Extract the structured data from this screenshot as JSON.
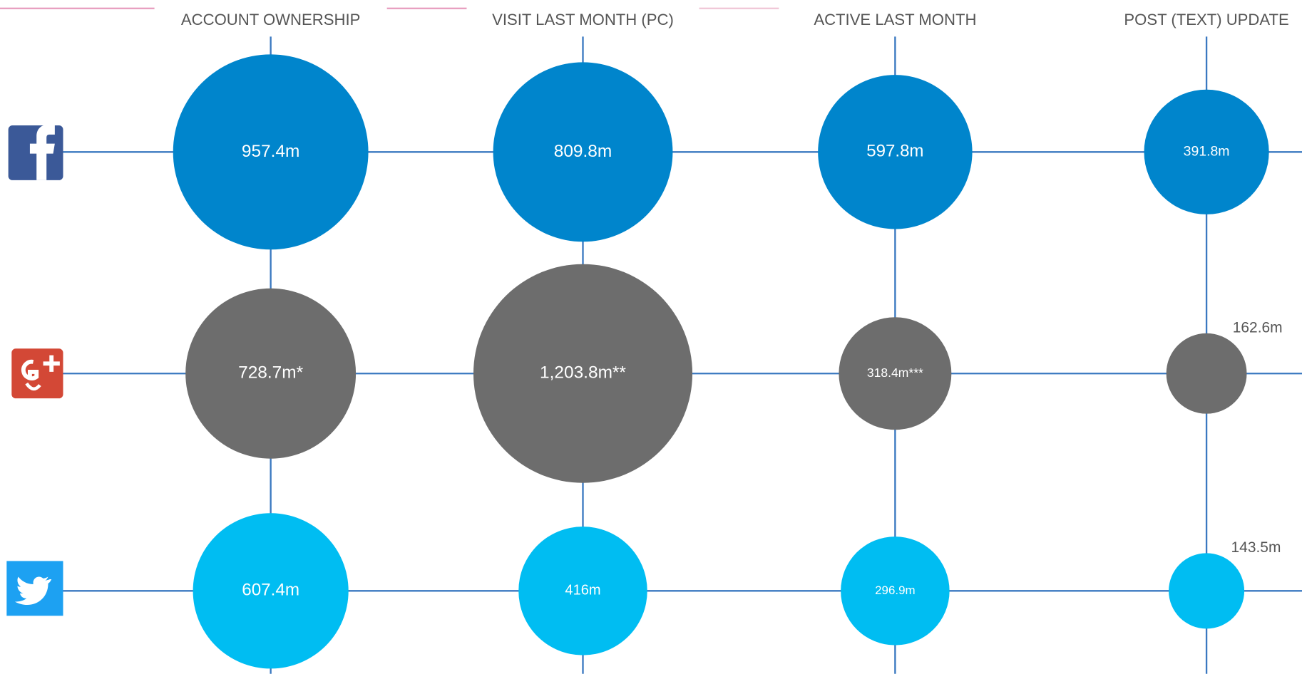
{
  "chart_data": {
    "type": "bubble",
    "categories": [
      "ACCOUNT OWNERSHIP",
      "VISIT LAST MONTH (PC)",
      "ACTIVE LAST MONTH",
      "POST (TEXT) UPDATE"
    ],
    "series": [
      {
        "color": "#0085cc",
        "values": [
          957.4,
          809.8,
          597.8,
          391.8
        ],
        "value_labels": [
          "957.4m",
          "809.8m",
          "597.8m",
          "391.8m"
        ]
      },
      {
        "color": "#6d6d6d",
        "values": [
          728.7,
          1203.8,
          318.4,
          162.6
        ],
        "value_labels": [
          "728.7m*",
          "1,203.8m**",
          "318.4m***",
          "162.6m"
        ]
      },
      {
        "color": "#00bdf2",
        "values": [
          607.4,
          416,
          296.9,
          143.5
        ],
        "value_labels": [
          "607.4m",
          "416m",
          "296.9m",
          "143.5m"
        ]
      }
    ]
  }
}
